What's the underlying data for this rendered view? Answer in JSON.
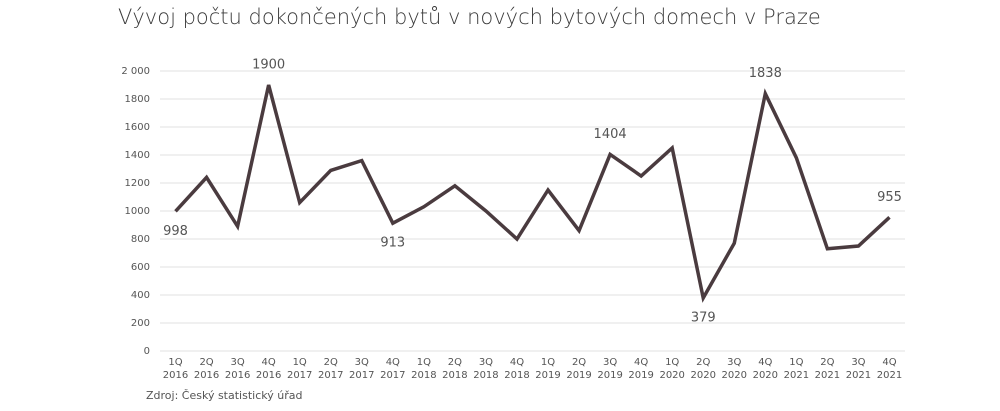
{
  "chart_data": {
    "type": "line",
    "title": "Vývoj počtu dokončených bytů v nových bytových domech v Praze",
    "source": "Zdroj: Český statistický úřad",
    "categories": [
      [
        "1Q",
        "2016"
      ],
      [
        "2Q",
        "2016"
      ],
      [
        "3Q",
        "2016"
      ],
      [
        "4Q",
        "2016"
      ],
      [
        "1Q",
        "2017"
      ],
      [
        "2Q",
        "2017"
      ],
      [
        "3Q",
        "2017"
      ],
      [
        "4Q",
        "2017"
      ],
      [
        "1Q",
        "2018"
      ],
      [
        "2Q",
        "2018"
      ],
      [
        "3Q",
        "2018"
      ],
      [
        "4Q",
        "2018"
      ],
      [
        "1Q",
        "2019"
      ],
      [
        "2Q",
        "2019"
      ],
      [
        "3Q",
        "2019"
      ],
      [
        "4Q",
        "2019"
      ],
      [
        "1Q",
        "2020"
      ],
      [
        "2Q",
        "2020"
      ],
      [
        "3Q",
        "2020"
      ],
      [
        "4Q",
        "2020"
      ],
      [
        "1Q",
        "2021"
      ],
      [
        "2Q",
        "2021"
      ],
      [
        "3Q",
        "2021"
      ],
      [
        "4Q",
        "2021"
      ]
    ],
    "values": [
      998,
      1240,
      890,
      1900,
      1060,
      1290,
      1360,
      913,
      1030,
      1180,
      1000,
      800,
      1150,
      860,
      1404,
      1250,
      1450,
      379,
      770,
      1838,
      1380,
      730,
      750,
      955
    ],
    "value_labels": [
      "998",
      null,
      null,
      "1900",
      null,
      null,
      null,
      "913",
      null,
      null,
      null,
      null,
      null,
      null,
      "1404",
      null,
      null,
      "379",
      null,
      "1838",
      null,
      null,
      null,
      "955"
    ],
    "color": "#4a3b3f",
    "ylim": [
      0,
      2000
    ],
    "yticks": [
      0,
      200,
      400,
      600,
      800,
      1000,
      1200,
      1400,
      1600,
      1800,
      {
        "value": 2000,
        "label": "2 000"
      }
    ],
    "grid": true
  }
}
